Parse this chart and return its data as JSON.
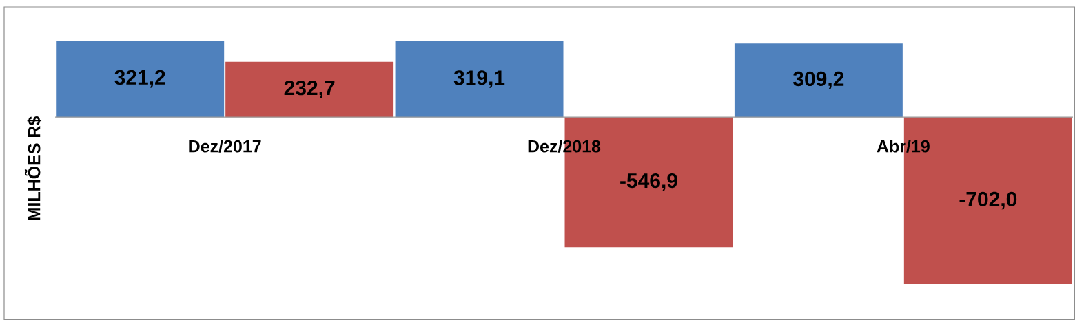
{
  "chart_data": {
    "type": "bar",
    "ylabel": "MILHÕES R$",
    "categories": [
      "Dez/2017",
      "Dez/2018",
      "Abr/19"
    ],
    "series": [
      {
        "color": "#4f81bd",
        "values": [
          321.2,
          319.1,
          309.2
        ],
        "value_labels": [
          "321,2",
          "319,1",
          "309,2"
        ]
      },
      {
        "color": "#c0504d",
        "values": [
          232.7,
          -546.9,
          -702.0
        ],
        "value_labels": [
          "232,7",
          "-546,9",
          "-702,0"
        ]
      }
    ]
  }
}
